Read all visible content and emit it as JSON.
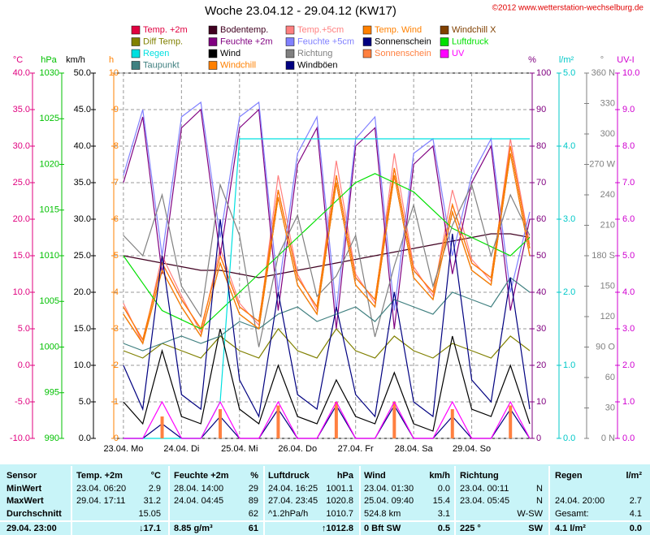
{
  "chart_data": {
    "type": "line",
    "title": "Woche 23.04.12 - 29.04.12 (KW17)",
    "copyright": "©2012 www.wetterstation-wechselburg.de",
    "grid": true,
    "xlim": [
      -4,
      169
    ],
    "xticks": [
      {
        "value": 0,
        "label": "23.04.  Mo"
      },
      {
        "value": 24,
        "label": "24.04.  Di"
      },
      {
        "value": 48,
        "label": "25.04.  Mi"
      },
      {
        "value": 72,
        "label": "26.04.  Do"
      },
      {
        "value": 96,
        "label": "27.04.  Fr"
      },
      {
        "value": 120,
        "label": "28.04.  Sa"
      },
      {
        "value": 144,
        "label": "29.04.  So"
      }
    ],
    "x": [
      0,
      8,
      16,
      24,
      32,
      40,
      48,
      56,
      64,
      72,
      80,
      88,
      96,
      104,
      112,
      120,
      128,
      136,
      144,
      152,
      160,
      168
    ],
    "axes": [
      {
        "label": "°C",
        "color": "#e0007f",
        "lim": [
          -10,
          40
        ],
        "ticks": [
          {
            "value": -10,
            "label": "-10.0"
          },
          {
            "value": -5,
            "label": "-5.0"
          },
          {
            "value": 0,
            "label": "0.0"
          },
          {
            "value": 5,
            "label": "5.0"
          },
          {
            "value": 10,
            "label": "10.0"
          },
          {
            "value": 15,
            "label": "15.0"
          },
          {
            "value": 20,
            "label": "20.0"
          },
          {
            "value": 25,
            "label": "25.0"
          },
          {
            "value": 30,
            "label": "30.0"
          },
          {
            "value": 35,
            "label": "35.0"
          },
          {
            "value": 40,
            "label": "40.0"
          }
        ]
      },
      {
        "label": "hPa",
        "color": "#00c000",
        "lim": [
          990,
          1030
        ],
        "ticks": [
          990,
          995,
          1000,
          1005,
          1010,
          1015,
          1020,
          1025,
          1030
        ]
      },
      {
        "label": "km/h",
        "color": "#000000",
        "lim": [
          0,
          50
        ],
        "ticks": [
          {
            "value": 0,
            "label": "0.0"
          },
          {
            "value": 5,
            "label": "5.0"
          },
          {
            "value": 10,
            "label": "10.0"
          },
          {
            "value": 15,
            "label": "15.0"
          },
          {
            "value": 20,
            "label": "20.0"
          },
          {
            "value": 25,
            "label": "25.0"
          },
          {
            "value": 30,
            "label": "30.0"
          },
          {
            "value": 35,
            "label": "35.0"
          },
          {
            "value": 40,
            "label": "40.0"
          },
          {
            "value": 45,
            "label": "45.0"
          },
          {
            "value": 50,
            "label": "50.0"
          }
        ]
      },
      {
        "label": "h",
        "color": "#ff8000",
        "lim": [
          0,
          10
        ],
        "ticks": [
          0,
          1,
          2,
          3,
          4,
          5,
          6,
          7,
          8,
          9,
          10
        ],
        "grid": true
      },
      {
        "label": "%",
        "color": "#800080",
        "lim": [
          0,
          100
        ],
        "ticks": [
          0,
          10,
          20,
          30,
          40,
          50,
          60,
          70,
          80,
          90,
          100
        ]
      },
      {
        "label": "l/m²",
        "color": "#00c8c8",
        "lim": [
          0,
          5
        ],
        "ticks": [
          {
            "value": 0,
            "label": "0.0"
          },
          {
            "value": 1,
            "label": "1.0"
          },
          {
            "value": 2,
            "label": "2.0"
          },
          {
            "value": 3,
            "label": "3.0"
          },
          {
            "value": 4,
            "label": "4.0"
          },
          {
            "value": 5,
            "label": "5.0"
          }
        ]
      },
      {
        "label": "°",
        "color": "#808080",
        "lim": [
          0,
          360
        ],
        "ticks": [
          {
            "value": 0,
            "label": "0 N"
          },
          30,
          60,
          {
            "value": 90,
            "label": "90 O"
          },
          120,
          150,
          {
            "value": 180,
            "label": "180 S"
          },
          210,
          240,
          {
            "value": 270,
            "label": "270 W"
          },
          300,
          330,
          {
            "value": 360,
            "label": "360 N"
          }
        ]
      },
      {
        "label": "UV-I",
        "color": "#d000d0",
        "lim": [
          0,
          10
        ],
        "ticks": [
          {
            "value": 0,
            "label": "0.0"
          },
          {
            "value": 1,
            "label": "1.0"
          },
          {
            "value": 2,
            "label": "2.0"
          },
          {
            "value": 3,
            "label": "3.0"
          },
          {
            "value": 4,
            "label": "4.0"
          },
          {
            "value": 5,
            "label": "5.0"
          },
          {
            "value": 6,
            "label": "6.0"
          },
          {
            "value": 7,
            "label": "7.0"
          },
          {
            "value": 8,
            "label": "8.0"
          },
          {
            "value": 9,
            "label": "9.0"
          },
          {
            "value": 10,
            "label": "10.0"
          }
        ]
      }
    ],
    "series": [
      {
        "name": "Temp. +2m",
        "color": "#e00040",
        "axis": 0,
        "values": [
          8,
          3.5,
          14,
          9,
          5,
          15,
          8,
          6,
          24,
          12,
          8,
          26,
          12,
          9,
          27,
          13,
          10,
          22,
          14,
          12,
          30,
          16
        ]
      },
      {
        "name": "Bodentemp.",
        "color": "#400020",
        "axis": 0,
        "values": [
          15,
          14.5,
          14,
          13.5,
          13,
          13,
          12.5,
          12,
          12.5,
          13,
          13.5,
          14,
          14.5,
          15,
          15.5,
          16,
          16.5,
          17,
          17.5,
          18,
          18,
          17.5
        ]
      },
      {
        "name": "Temp.+5cm",
        "color": "#ff8080",
        "axis": 0,
        "values": [
          8.5,
          3,
          15,
          9.5,
          4.5,
          16,
          8.5,
          5.5,
          26,
          12.5,
          7.5,
          28,
          12.5,
          8.5,
          29,
          13.5,
          9.5,
          24,
          14.5,
          11.5,
          31,
          16.5
        ]
      },
      {
        "name": "Temp. Wind",
        "color": "#ff8000",
        "axis": 0,
        "values": [
          8,
          3.5,
          14,
          9,
          5,
          15,
          8,
          6,
          24,
          12,
          8,
          26,
          12,
          9,
          27,
          13,
          10,
          22,
          14,
          12,
          30,
          16
        ]
      },
      {
        "name": "Windchill X",
        "color": "#804000",
        "axis": 0,
        "values": [
          7,
          3,
          13,
          8,
          4,
          14,
          7,
          5,
          23,
          11,
          7,
          25,
          11,
          8,
          26,
          12,
          9,
          21,
          13,
          11,
          29,
          15
        ]
      },
      {
        "name": "Diff Temp.",
        "color": "#808000",
        "axis": 0,
        "values": [
          2,
          1,
          3,
          2,
          1,
          4,
          2,
          1,
          5,
          2,
          1,
          5,
          2,
          1,
          4,
          2,
          1,
          3,
          2,
          1,
          4,
          2
        ]
      },
      {
        "name": "Feuchte +2m",
        "color": "#800080",
        "axis": 4,
        "values": [
          70,
          88,
          45,
          85,
          90,
          50,
          85,
          90,
          35,
          75,
          85,
          30,
          80,
          85,
          30,
          75,
          80,
          45,
          70,
          80,
          35,
          60
        ]
      },
      {
        "name": "Feuchte +5cm",
        "color": "#8080ff",
        "axis": 4,
        "values": [
          72,
          90,
          50,
          88,
          92,
          55,
          88,
          92,
          40,
          78,
          88,
          35,
          82,
          88,
          35,
          78,
          82,
          50,
          72,
          82,
          40,
          62
        ]
      },
      {
        "name": "Sonnenschein",
        "color": "#000080",
        "axis": 3,
        "values": [
          0,
          0,
          0.4,
          0,
          0,
          0.6,
          0,
          0,
          0.8,
          0,
          0,
          0.9,
          0,
          0,
          0.9,
          0,
          0,
          0.6,
          0,
          0,
          0.8,
          0
        ]
      },
      {
        "name": "Luftdruck",
        "color": "#00e000",
        "axis": 1,
        "values": [
          1010,
          1007,
          1004,
          1003,
          1002,
          1004,
          1006,
          1008,
          1010,
          1012,
          1014,
          1016,
          1018,
          1019,
          1018,
          1017,
          1015,
          1013,
          1012,
          1011,
          1010,
          1012
        ]
      },
      {
        "name": "Regen",
        "color": "#00e0e0",
        "axis": 5,
        "values": [
          0,
          0,
          0,
          0,
          0,
          0.5,
          4.1,
          4.1,
          4.1,
          4.1,
          4.1,
          4.1,
          4.1,
          4.1,
          4.1,
          4.1,
          4.1,
          4.1,
          4.1,
          4.1,
          4.1,
          4.1
        ]
      },
      {
        "name": "Wind",
        "color": "#000000",
        "axis": 2,
        "values": [
          5,
          2,
          12,
          3,
          2,
          15,
          4,
          2,
          10,
          3,
          2,
          8,
          3,
          2,
          9,
          2,
          1,
          14,
          4,
          3,
          10,
          2
        ]
      },
      {
        "name": "Richtung",
        "color": "#808080",
        "axis": 6,
        "values": [
          200,
          180,
          240,
          150,
          120,
          250,
          200,
          90,
          180,
          220,
          140,
          160,
          200,
          100,
          170,
          230,
          150,
          210,
          250,
          180,
          240,
          200
        ]
      },
      {
        "name": "Sonnenschein",
        "color": "#ff8040",
        "axis": 3,
        "type": "bar",
        "values": [
          0,
          0,
          0.6,
          0,
          0,
          0.8,
          0,
          0,
          0.9,
          0,
          0,
          1,
          0,
          0,
          1,
          0,
          0,
          0.8,
          0,
          0,
          0.9,
          0
        ]
      },
      {
        "name": "UV",
        "color": "#ff00ff",
        "axis": 7,
        "values": [
          0,
          0,
          1,
          0,
          0,
          1,
          0,
          0,
          1,
          0,
          0,
          1,
          0,
          0,
          1,
          0,
          0,
          1,
          0,
          0,
          1,
          0
        ]
      },
      {
        "name": "Taupunkt",
        "color": "#408080",
        "axis": 0,
        "values": [
          3,
          2,
          3,
          4,
          3,
          4,
          6,
          5,
          7,
          8,
          6,
          7,
          8,
          6,
          9,
          8,
          7,
          10,
          9,
          8,
          12,
          10
        ]
      },
      {
        "name": "Windchill",
        "color": "#ff8000",
        "axis": 0,
        "values": [
          7,
          3,
          13,
          8,
          4,
          14,
          7,
          5,
          23,
          11,
          7,
          25,
          11,
          8,
          26,
          12,
          9,
          21,
          13,
          11,
          29,
          15
        ]
      },
      {
        "name": "Windböen",
        "color": "#000080",
        "axis": 2,
        "values": [
          10,
          4,
          25,
          6,
          4,
          30,
          8,
          3,
          20,
          6,
          4,
          18,
          6,
          3,
          20,
          5,
          3,
          28,
          8,
          5,
          22,
          4
        ]
      }
    ]
  },
  "table": {
    "header": [
      "Sensor",
      "Temp. +2m",
      "°C",
      "Feuchte +2m",
      "%",
      "Luftdruck",
      "hPa",
      "Wind",
      "km/h",
      "Richtung",
      null,
      "Regen",
      "l/m²"
    ],
    "rows": [
      [
        "MinWert",
        "23.04.  06:20",
        "2.9",
        "28.04.  14:00",
        "29",
        "24.04.  16:25",
        "1001.1",
        "23.04.  01:30",
        "0.0",
        "23.04.  00:11",
        "N",
        null,
        null
      ],
      [
        "MaxWert",
        "29.04.  17:11",
        "31.2",
        "24.04.  04:45",
        "89",
        "27.04.  23:45",
        "1020.8",
        "25.04.  09:40",
        "15.4",
        "23.04.  05:45",
        "N",
        "24.04.  20:00",
        "2.7"
      ],
      [
        "Durchschnitt",
        null,
        "15.05",
        null,
        "62",
        "^1.2hPa/h",
        "1010.7",
        "524.8 km",
        "3.1",
        null,
        "W-SW",
        "Gesamt:",
        "4.1"
      ],
      [
        "29.04. 23:00",
        null,
        "↓17.1",
        "8.85 g/m³",
        "61",
        null,
        "↑1012.8",
        "0 Bft SW",
        "0.5",
        "225 °",
        "SW",
        "4.1 l/m²",
        "0.0"
      ]
    ]
  }
}
